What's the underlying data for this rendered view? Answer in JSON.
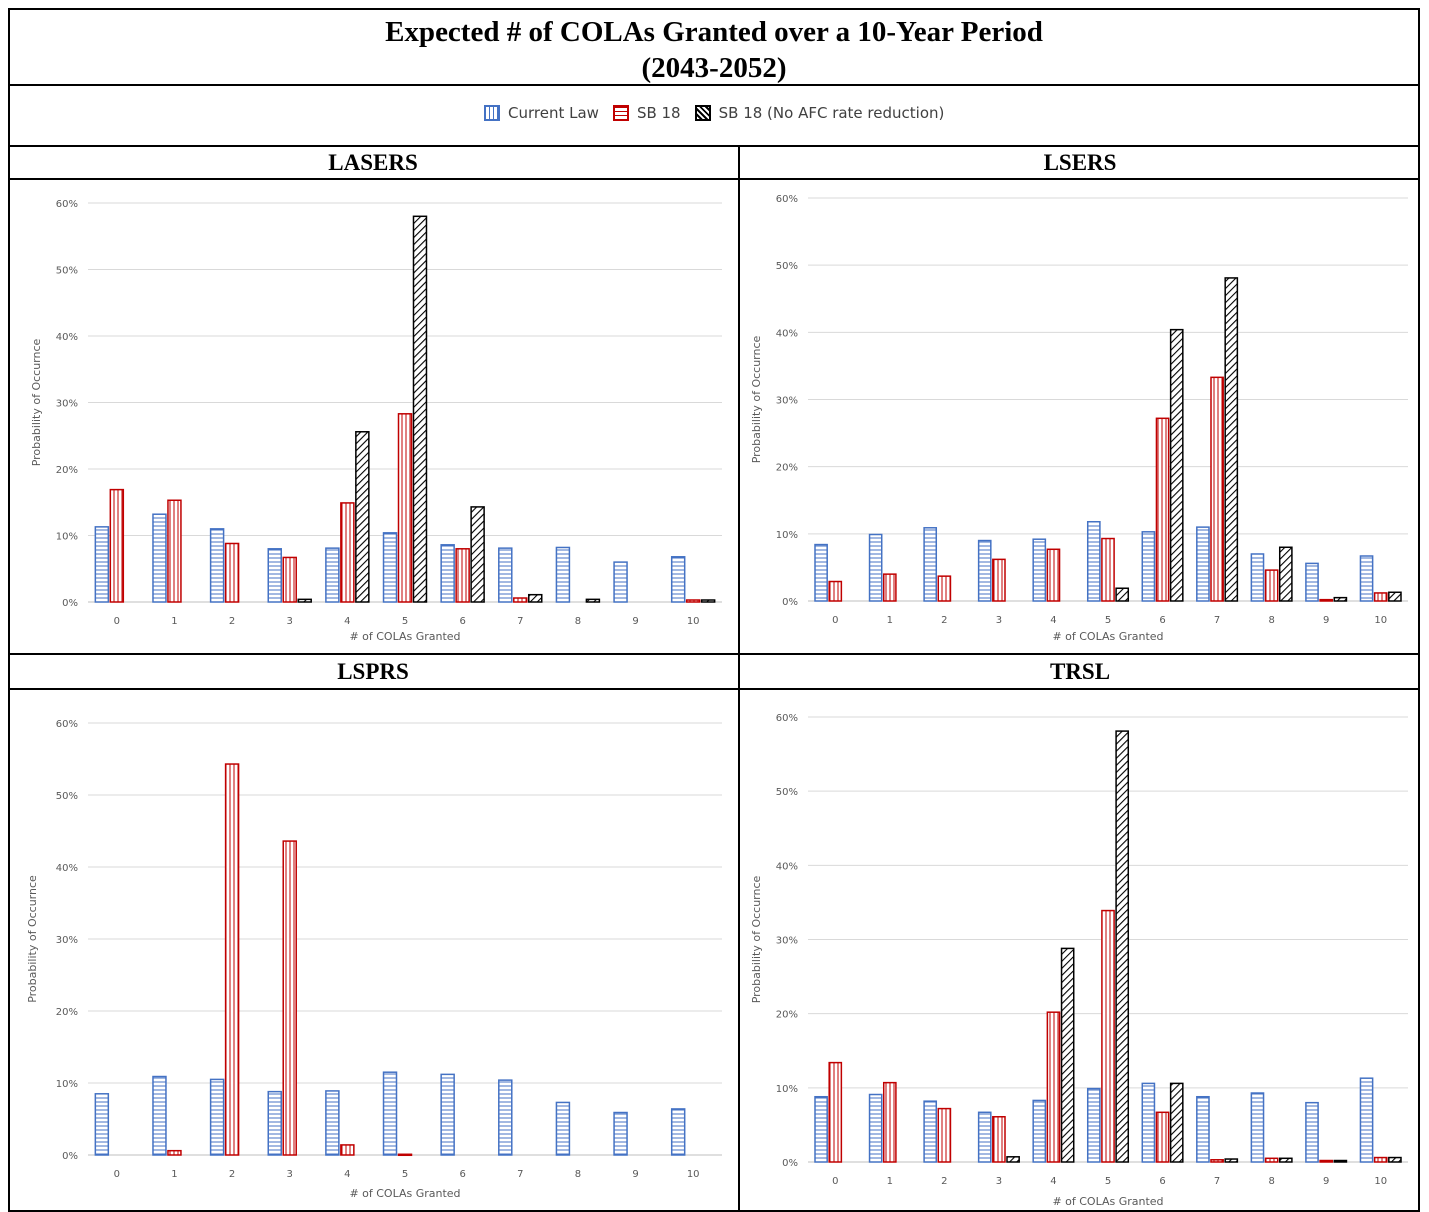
{
  "title_line1": "Expected # of COLAs Granted over a 10-Year Period",
  "title_line2": "(2043-2052)",
  "legend": [
    {
      "name": "Current Law",
      "color": "#4472C4",
      "pattern": "horizontal-lines"
    },
    {
      "name": "SB 18",
      "color": "#C00000",
      "pattern": "vertical-lines"
    },
    {
      "name": "SB 18 (No AFC rate reduction)",
      "color": "#000000",
      "pattern": "diagonal-lines"
    }
  ],
  "chart_data": [
    {
      "type": "bar",
      "title": "LASERS",
      "xlabel": "# of COLAs Granted",
      "ylabel": "Probability of Occurnce",
      "categories": [
        "0",
        "1",
        "2",
        "3",
        "4",
        "5",
        "6",
        "7",
        "8",
        "9",
        "10"
      ],
      "yticks": [
        "0%",
        "10%",
        "20%",
        "30%",
        "40%",
        "50%",
        "60%"
      ],
      "ylim": [
        0,
        60
      ],
      "grid": true,
      "series": [
        {
          "name": "Current Law",
          "values": [
            11.3,
            13.2,
            11.0,
            8.0,
            8.1,
            10.4,
            8.6,
            8.1,
            8.2,
            6.0,
            6.8
          ]
        },
        {
          "name": "SB 18",
          "values": [
            16.9,
            15.3,
            8.8,
            6.7,
            14.9,
            28.3,
            8.0,
            0.6,
            0.0,
            0.0,
            0.3
          ]
        },
        {
          "name": "SB 18 (No AFC rate reduction)",
          "values": [
            0.0,
            0.0,
            0.0,
            0.4,
            25.6,
            58.0,
            14.3,
            1.1,
            0.4,
            0.0,
            0.3
          ]
        }
      ]
    },
    {
      "type": "bar",
      "title": "LSERS",
      "xlabel": "# of COLAs Granted",
      "ylabel": "Probability of Occurnce",
      "categories": [
        "0",
        "1",
        "2",
        "3",
        "4",
        "5",
        "6",
        "7",
        "8",
        "9",
        "10"
      ],
      "yticks": [
        "0%",
        "10%",
        "20%",
        "30%",
        "40%",
        "50%",
        "60%"
      ],
      "ylim": [
        0,
        60
      ],
      "grid": true,
      "series": [
        {
          "name": "Current Law",
          "values": [
            8.4,
            9.9,
            10.9,
            9.0,
            9.2,
            11.8,
            10.3,
            11.0,
            7.0,
            5.6,
            6.7
          ]
        },
        {
          "name": "SB 18",
          "values": [
            2.9,
            4.0,
            3.7,
            6.2,
            7.7,
            9.3,
            27.2,
            33.3,
            4.6,
            0.2,
            1.2
          ]
        },
        {
          "name": "SB 18 (No AFC rate reduction)",
          "values": [
            0.0,
            0.0,
            0.0,
            0.0,
            0.0,
            1.9,
            40.4,
            48.1,
            8.0,
            0.5,
            1.3
          ]
        }
      ]
    },
    {
      "type": "bar",
      "title": "LSPRS",
      "xlabel": "# of COLAs Granted",
      "ylabel": "Probability of Occurnce",
      "categories": [
        "0",
        "1",
        "2",
        "3",
        "4",
        "5",
        "6",
        "7",
        "8",
        "9",
        "10"
      ],
      "yticks": [
        "0%",
        "10%",
        "20%",
        "30%",
        "40%",
        "50%",
        "60%"
      ],
      "ylim": [
        0,
        60
      ],
      "grid": true,
      "series": [
        {
          "name": "Current Law",
          "values": [
            8.5,
            10.9,
            10.5,
            8.8,
            8.9,
            11.5,
            11.2,
            10.4,
            7.3,
            5.9,
            6.4
          ]
        },
        {
          "name": "SB 18",
          "values": [
            0.0,
            0.6,
            54.3,
            43.6,
            1.4,
            0.1,
            0.0,
            0.0,
            0.0,
            0.0,
            0.0
          ]
        },
        {
          "name": "SB 18 (No AFC rate reduction)",
          "values": [
            0,
            0,
            0,
            0,
            0,
            0,
            0,
            0,
            0,
            0,
            0
          ]
        }
      ]
    },
    {
      "type": "bar",
      "title": "TRSL",
      "xlabel": "# of COLAs Granted",
      "ylabel": "Probability of Occurnce",
      "categories": [
        "0",
        "1",
        "2",
        "3",
        "4",
        "5",
        "6",
        "7",
        "8",
        "9",
        "10"
      ],
      "yticks": [
        "0%",
        "10%",
        "20%",
        "30%",
        "40%",
        "50%",
        "60%"
      ],
      "ylim": [
        0,
        60
      ],
      "grid": true,
      "series": [
        {
          "name": "Current Law",
          "values": [
            8.8,
            9.1,
            8.2,
            6.7,
            8.3,
            9.9,
            10.6,
            8.8,
            9.3,
            8.0,
            11.3
          ]
        },
        {
          "name": "SB 18",
          "values": [
            13.4,
            10.7,
            7.2,
            6.1,
            20.2,
            33.9,
            6.7,
            0.3,
            0.5,
            0.2,
            0.6
          ]
        },
        {
          "name": "SB 18 (No AFC rate reduction)",
          "values": [
            0.0,
            0.0,
            0.0,
            0.7,
            28.8,
            58.1,
            10.6,
            0.4,
            0.5,
            0.2,
            0.6
          ]
        }
      ]
    }
  ]
}
